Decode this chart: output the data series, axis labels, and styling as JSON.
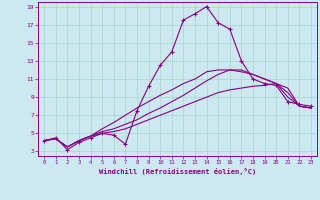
{
  "xlabel": "Windchill (Refroidissement éolien,°C)",
  "background_color": "#cce8f0",
  "grid_color": "#aad4cc",
  "line_color": "#880088",
  "xlim": [
    -0.5,
    23.5
  ],
  "ylim": [
    2.5,
    19.5
  ],
  "xticks": [
    0,
    1,
    2,
    3,
    4,
    5,
    6,
    7,
    8,
    9,
    10,
    11,
    12,
    13,
    14,
    15,
    16,
    17,
    18,
    19,
    20,
    21,
    22,
    23
  ],
  "yticks": [
    3,
    5,
    7,
    9,
    11,
    13,
    15,
    17,
    19
  ],
  "lines": [
    {
      "x": [
        0,
        1,
        2,
        3,
        4,
        5,
        6,
        7,
        8,
        9,
        10,
        11,
        12,
        13,
        14,
        15,
        16,
        17,
        18,
        19,
        20,
        21,
        22,
        23
      ],
      "y": [
        4.2,
        4.5,
        3.2,
        4.0,
        4.5,
        5.0,
        4.8,
        3.8,
        7.5,
        10.2,
        12.5,
        14.0,
        17.5,
        18.2,
        19.0,
        17.2,
        16.5,
        13.0,
        11.0,
        10.5,
        10.3,
        8.5,
        8.2,
        8.0
      ],
      "marker": "+"
    },
    {
      "x": [
        0,
        1,
        2,
        3,
        4,
        5,
        6,
        7,
        8,
        9,
        10,
        11,
        12,
        13,
        14,
        15,
        16,
        17,
        18,
        19,
        20,
        21,
        22,
        23
      ],
      "y": [
        4.2,
        4.4,
        3.5,
        4.2,
        4.7,
        5.0,
        5.2,
        5.5,
        6.0,
        6.5,
        7.0,
        7.5,
        8.0,
        8.5,
        9.0,
        9.5,
        9.8,
        10.0,
        10.2,
        10.3,
        10.5,
        10.0,
        8.0,
        7.8
      ],
      "marker": null
    },
    {
      "x": [
        0,
        1,
        2,
        3,
        4,
        5,
        6,
        7,
        8,
        9,
        10,
        11,
        12,
        13,
        14,
        15,
        16,
        17,
        18,
        19,
        20,
        21,
        22,
        23
      ],
      "y": [
        4.2,
        4.4,
        3.5,
        4.2,
        4.7,
        5.2,
        5.5,
        6.0,
        6.5,
        7.2,
        7.8,
        8.5,
        9.2,
        10.0,
        10.8,
        11.5,
        12.0,
        12.0,
        11.5,
        11.0,
        10.5,
        9.5,
        8.0,
        7.8
      ],
      "marker": null
    },
    {
      "x": [
        0,
        1,
        2,
        3,
        4,
        5,
        6,
        7,
        8,
        9,
        10,
        11,
        12,
        13,
        14,
        15,
        16,
        17,
        18,
        19,
        20,
        21,
        22,
        23
      ],
      "y": [
        4.2,
        4.4,
        3.5,
        4.2,
        4.7,
        5.5,
        6.2,
        7.0,
        7.8,
        8.5,
        9.2,
        9.8,
        10.5,
        11.0,
        11.8,
        12.0,
        12.0,
        11.8,
        11.5,
        11.0,
        10.5,
        9.0,
        8.0,
        7.8
      ],
      "marker": null
    }
  ]
}
